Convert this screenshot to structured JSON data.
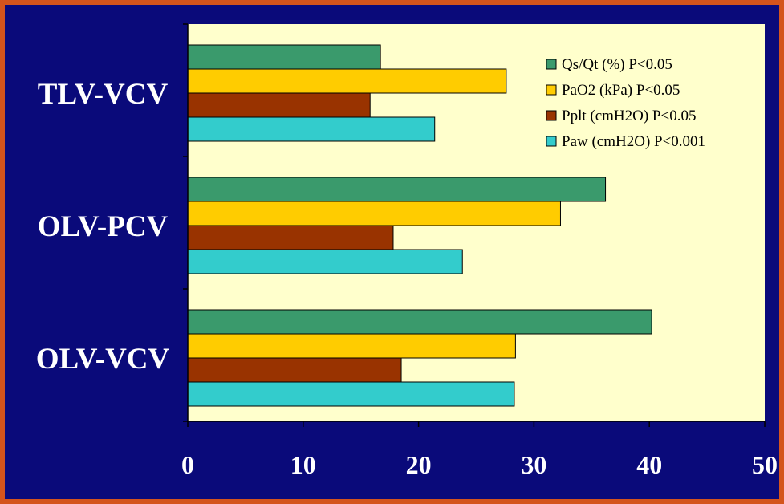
{
  "chart_data": {
    "type": "bar",
    "orientation": "horizontal",
    "title": "",
    "xlabel": "",
    "ylabel": "",
    "categories": [
      "TLV-VCV",
      "OLV-PCV",
      "OLV-VCV"
    ],
    "xlim": [
      0,
      50
    ],
    "xticks": [
      0,
      10,
      20,
      30,
      40,
      50
    ],
    "grid": false,
    "legend_position": "top-right",
    "series": [
      {
        "name": "Qs/Qt (%) P<0.05",
        "color": "#3a9a6c",
        "values": [
          16.7,
          36.2,
          40.2
        ]
      },
      {
        "name": "PaO2 (kPa) P<0.05",
        "color": "#ffcc00",
        "values": [
          27.6,
          32.3,
          28.4
        ]
      },
      {
        "name": "Pplt (cmH2O) P<0.05",
        "color": "#993300",
        "values": [
          15.8,
          17.8,
          18.5
        ]
      },
      {
        "name": "Paw (cmH2O) P<0.001",
        "color": "#33cccc",
        "values": [
          21.4,
          23.8,
          28.3
        ]
      }
    ],
    "colors": {
      "plot_background": "#ffffcc",
      "page_background": "#0a0a7a",
      "border": "#d4541c",
      "bar_outline": "#000000",
      "label_text": "#ffffff"
    }
  }
}
